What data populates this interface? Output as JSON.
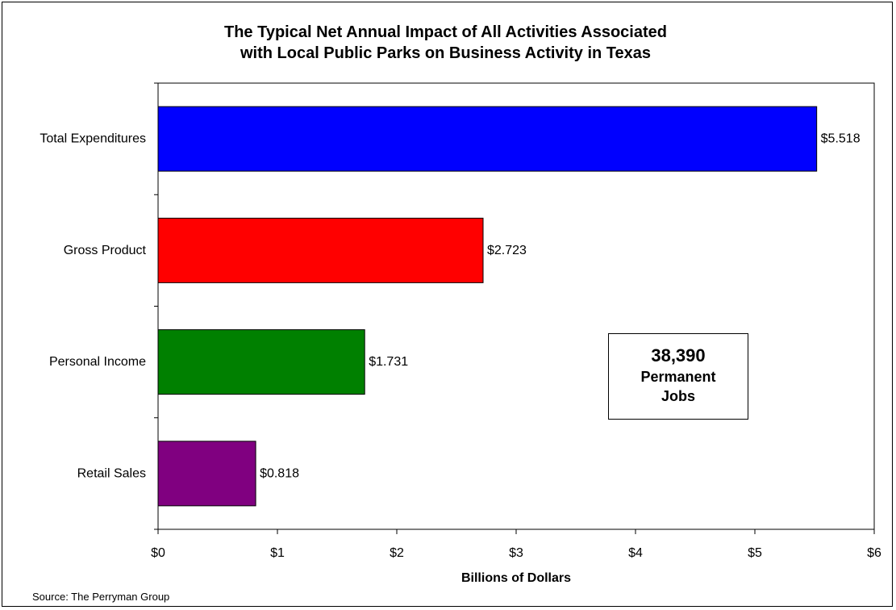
{
  "chart_data": {
    "type": "bar",
    "orientation": "horizontal",
    "title": "The Typical Net Annual Impact of All Activities Associated\nwith Local Public Parks on Business Activity in Texas",
    "xlabel": "Billions of Dollars",
    "ylabel": "",
    "xlim": [
      0,
      6
    ],
    "xticks": [
      "$0",
      "$1",
      "$2",
      "$3",
      "$4",
      "$5",
      "$6"
    ],
    "categories": [
      "Total Expenditures",
      "Gross Product",
      "Personal Income",
      "Retail Sales"
    ],
    "values": [
      5.518,
      2.723,
      1.731,
      0.818
    ],
    "data_labels": [
      "$5.518",
      "$2.723",
      "$1.731",
      "$0.818"
    ],
    "colors": [
      "#0000ff",
      "#ff0000",
      "#008000",
      "#800080"
    ],
    "grid": false,
    "legend": "none",
    "annotation": {
      "number": "38,390",
      "text": "Permanent\nJobs"
    },
    "source": "Source: The Perryman Group"
  }
}
